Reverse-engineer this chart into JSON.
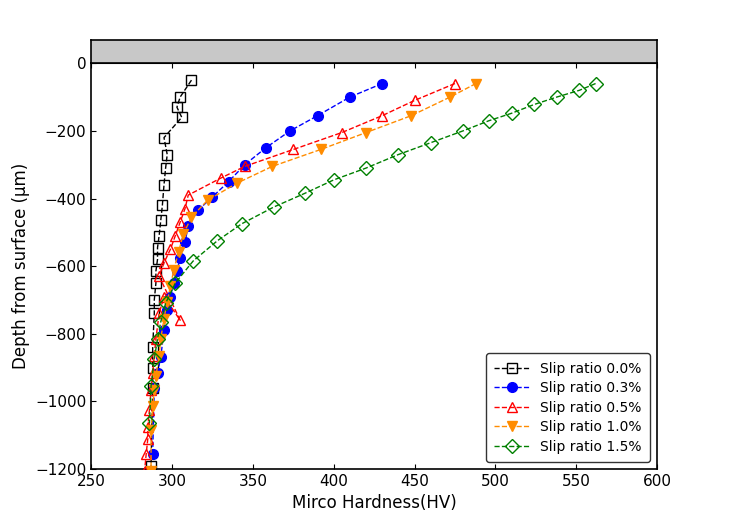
{
  "title": "",
  "xlabel": "Mirco Hardness(HV)",
  "ylabel": "Depth from surface (μm)",
  "xlim": [
    250,
    600
  ],
  "ylim": [
    -1200,
    0
  ],
  "xticks": [
    250,
    300,
    350,
    400,
    450,
    500,
    550,
    600
  ],
  "yticks": [
    0,
    -200,
    -400,
    -600,
    -800,
    -1000,
    -1200
  ],
  "top_bar_color": "#d0d0d0",
  "series": [
    {
      "label": "Slip ratio 0.0%",
      "color": "#000000",
      "marker": "s",
      "marker_fill": "none",
      "linestyle": "--",
      "hv": [
        312,
        305,
        303,
        306,
        295,
        297,
        296,
        295,
        294,
        293,
        292,
        291,
        291,
        290,
        290,
        289,
        289,
        288,
        288,
        288,
        287
      ],
      "depth": [
        -50,
        -100,
        -130,
        -160,
        -220,
        -270,
        -310,
        -360,
        -420,
        -465,
        -510,
        -545,
        -580,
        -615,
        -650,
        -700,
        -740,
        -840,
        -900,
        -960,
        -1190
      ]
    },
    {
      "label": "Slip ratio 0.3%",
      "color": "#0000ff",
      "marker": "o",
      "marker_fill": "full",
      "linestyle": "--",
      "hv": [
        430,
        410,
        390,
        373,
        358,
        345,
        335,
        325,
        316,
        310,
        308,
        305,
        303,
        301,
        299,
        297,
        295,
        293,
        291,
        289,
        288
      ],
      "depth": [
        -60,
        -100,
        -155,
        -200,
        -250,
        -300,
        -350,
        -395,
        -435,
        -480,
        -530,
        -575,
        -615,
        -650,
        -690,
        -730,
        -790,
        -870,
        -915,
        -960,
        -1155
      ]
    },
    {
      "label": "Slip ratio 0.5%",
      "color": "#ff0000",
      "marker": "^",
      "marker_fill": "none",
      "linestyle": "--",
      "hv": [
        475,
        450,
        430,
        405,
        375,
        345,
        330,
        310,
        308,
        305,
        302,
        299,
        295,
        292,
        305,
        295,
        292,
        290,
        289,
        288,
        287,
        286,
        285,
        285,
        284,
        283
      ],
      "depth": [
        -60,
        -110,
        -155,
        -205,
        -255,
        -305,
        -340,
        -390,
        -430,
        -470,
        -510,
        -550,
        -590,
        -630,
        -760,
        -690,
        -740,
        -815,
        -865,
        -915,
        -965,
        -1025,
        -1075,
        -1110,
        -1155,
        -1205
      ]
    },
    {
      "label": "Slip ratio 1.0%",
      "color": "#ff8c00",
      "marker": "v",
      "marker_fill": "full",
      "linestyle": "--",
      "hv": [
        488,
        472,
        448,
        420,
        392,
        362,
        340,
        322,
        312,
        307,
        304,
        301,
        299,
        297,
        295,
        293,
        292,
        290,
        289,
        288,
        287,
        287
      ],
      "depth": [
        -60,
        -100,
        -155,
        -205,
        -255,
        -305,
        -355,
        -405,
        -455,
        -505,
        -558,
        -612,
        -660,
        -705,
        -755,
        -815,
        -865,
        -925,
        -965,
        -1015,
        -1085,
        -1205
      ]
    },
    {
      "label": "Slip ratio 1.5%",
      "color": "#008000",
      "marker": "D",
      "marker_fill": "none",
      "linestyle": "--",
      "hv": [
        562,
        552,
        538,
        524,
        510,
        496,
        480,
        460,
        440,
        420,
        400,
        382,
        363,
        343,
        328,
        313,
        302,
        296,
        293,
        291,
        289,
        287,
        286
      ],
      "depth": [
        -60,
        -80,
        -100,
        -122,
        -148,
        -170,
        -200,
        -235,
        -270,
        -310,
        -345,
        -385,
        -425,
        -475,
        -525,
        -585,
        -650,
        -710,
        -765,
        -815,
        -875,
        -955,
        -1065
      ]
    }
  ]
}
